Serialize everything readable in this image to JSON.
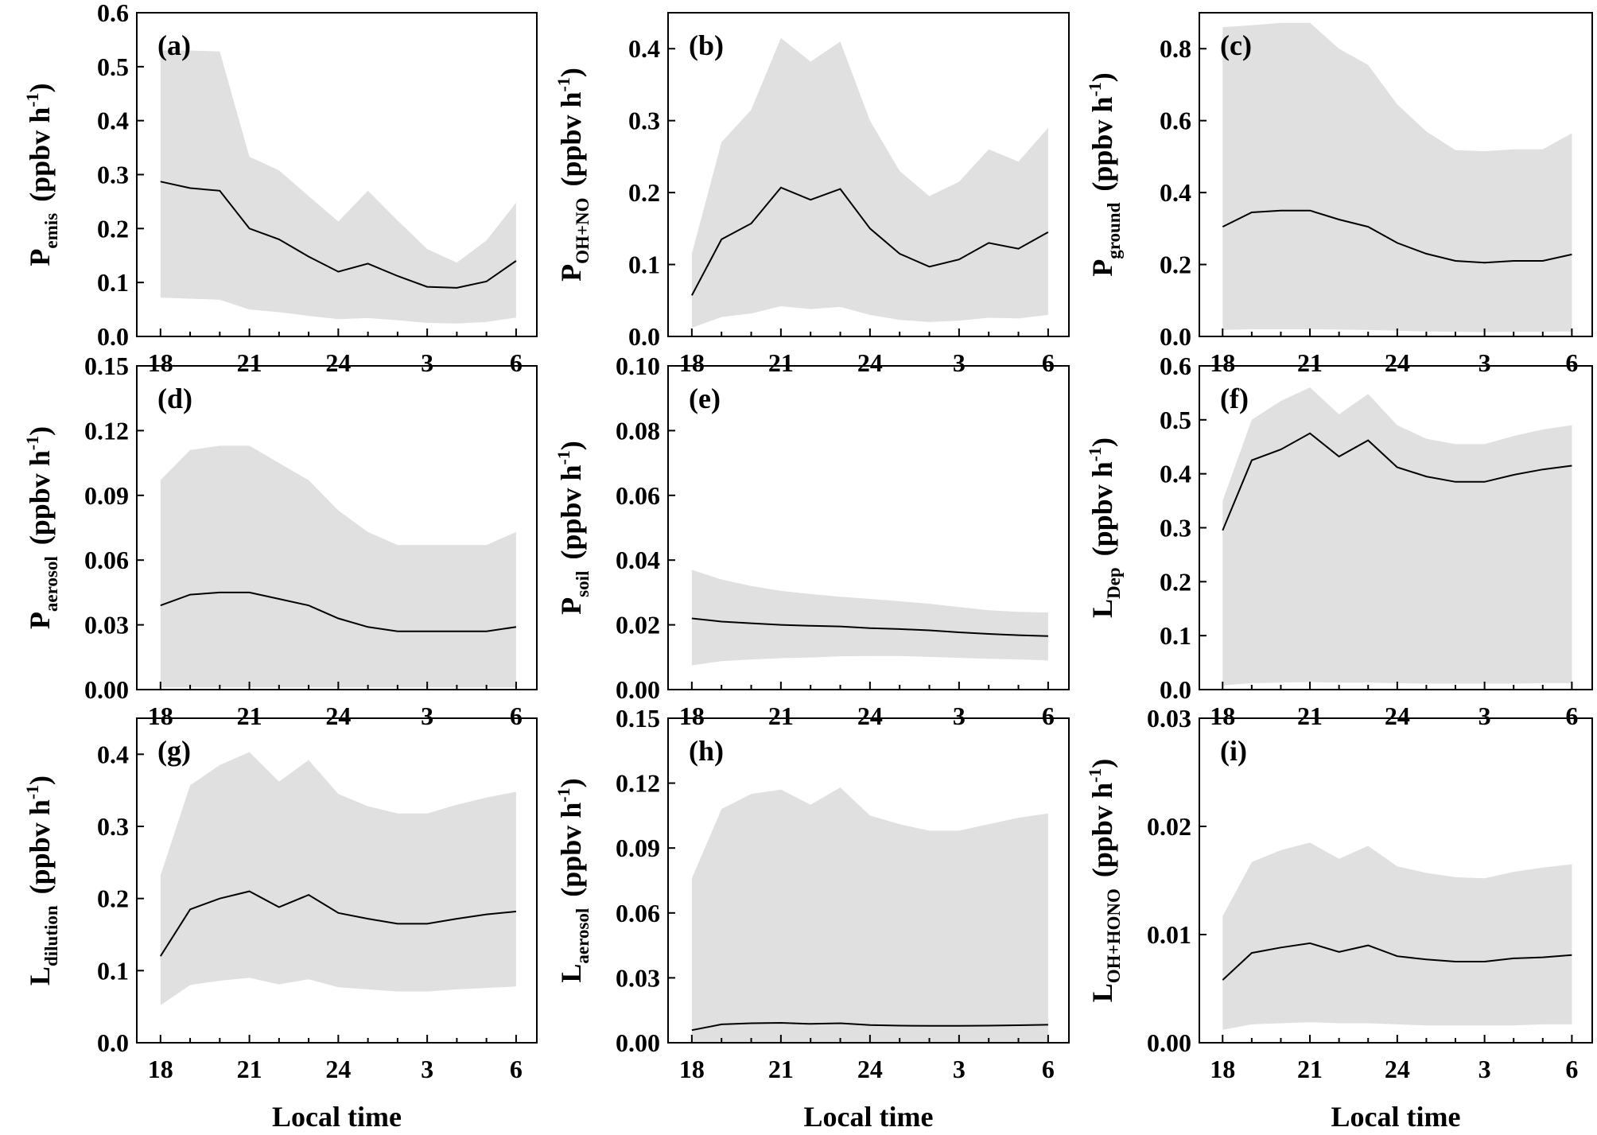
{
  "colors": {
    "band": "#e0e0e0",
    "line": "#000000",
    "axis": "#000000"
  },
  "x_tick_labels": [
    "18",
    "21",
    "24",
    "3",
    "6"
  ],
  "x_axis_label": "Local time",
  "chart_data": [
    {
      "type": "area",
      "tag": "(a)",
      "ylabel_main": "P",
      "ylabel_sub": "emis",
      "ylabel_unit": "(ppbv h",
      "ylabel_sup": "-1",
      "ylabel_close": ")",
      "ylim": [
        0,
        0.6
      ],
      "yticks": [
        0.0,
        0.1,
        0.2,
        0.3,
        0.4,
        0.5,
        0.6
      ],
      "ytick_labels": [
        "0.0",
        "0.1",
        "0.2",
        "0.3",
        "0.4",
        "0.5",
        "0.6"
      ],
      "x": [
        18,
        19,
        20,
        21,
        22,
        23,
        24,
        25,
        26,
        27,
        28,
        29,
        30
      ],
      "mean": [
        0.287,
        0.275,
        0.27,
        0.2,
        0.18,
        0.148,
        0.12,
        0.135,
        0.112,
        0.092,
        0.09,
        0.102,
        0.14
      ],
      "upper": [
        0.53,
        0.53,
        0.528,
        0.333,
        0.308,
        0.26,
        0.213,
        0.27,
        0.215,
        0.162,
        0.137,
        0.178,
        0.248
      ],
      "lower": [
        0.072,
        0.07,
        0.068,
        0.05,
        0.045,
        0.038,
        0.032,
        0.034,
        0.03,
        0.025,
        0.024,
        0.027,
        0.035
      ]
    },
    {
      "type": "area",
      "tag": "(b)",
      "ylabel_main": "P",
      "ylabel_sub": "OH+NO",
      "ylabel_unit": "(ppbv h",
      "ylabel_sup": "-1",
      "ylabel_close": ")",
      "ylim": [
        0,
        0.45
      ],
      "yticks": [
        0.0,
        0.1,
        0.2,
        0.3,
        0.4
      ],
      "ytick_labels": [
        "0.0",
        "0.1",
        "0.2",
        "0.3",
        "0.4"
      ],
      "x": [
        18,
        19,
        20,
        21,
        22,
        23,
        24,
        25,
        26,
        27,
        28,
        29,
        30
      ],
      "mean": [
        0.057,
        0.135,
        0.157,
        0.207,
        0.19,
        0.205,
        0.15,
        0.115,
        0.097,
        0.107,
        0.13,
        0.122,
        0.145
      ],
      "upper": [
        0.115,
        0.27,
        0.315,
        0.415,
        0.382,
        0.41,
        0.3,
        0.23,
        0.195,
        0.215,
        0.26,
        0.243,
        0.29
      ],
      "lower": [
        0.012,
        0.027,
        0.032,
        0.042,
        0.038,
        0.041,
        0.03,
        0.023,
        0.02,
        0.022,
        0.026,
        0.025,
        0.03
      ]
    },
    {
      "type": "area",
      "tag": "(c)",
      "ylabel_main": "P",
      "ylabel_sub": "ground",
      "ylabel_unit": "(ppbv h",
      "ylabel_sup": "-1",
      "ylabel_close": ")",
      "ylim": [
        0,
        0.9
      ],
      "yticks": [
        0.0,
        0.2,
        0.4,
        0.6,
        0.8
      ],
      "ytick_labels": [
        "0.0",
        "0.2",
        "0.4",
        "0.6",
        "0.8"
      ],
      "x": [
        18,
        19,
        20,
        21,
        22,
        23,
        24,
        25,
        26,
        27,
        28,
        29,
        30
      ],
      "mean": [
        0.305,
        0.345,
        0.35,
        0.35,
        0.325,
        0.305,
        0.26,
        0.23,
        0.21,
        0.205,
        0.21,
        0.21,
        0.228
      ],
      "upper": [
        0.86,
        0.865,
        0.872,
        0.872,
        0.8,
        0.755,
        0.645,
        0.57,
        0.518,
        0.515,
        0.52,
        0.52,
        0.565
      ],
      "lower": [
        0.018,
        0.02,
        0.02,
        0.02,
        0.019,
        0.018,
        0.016,
        0.014,
        0.013,
        0.012,
        0.013,
        0.013,
        0.014
      ]
    },
    {
      "type": "area",
      "tag": "(d)",
      "ylabel_main": "P",
      "ylabel_sub": "aerosol",
      "ylabel_unit": "(ppbv h",
      "ylabel_sup": "-1",
      "ylabel_close": ")",
      "ylim": [
        0,
        0.15
      ],
      "yticks": [
        0.0,
        0.03,
        0.06,
        0.09,
        0.12,
        0.15
      ],
      "ytick_labels": [
        "0.00",
        "0.03",
        "0.06",
        "0.09",
        "0.12",
        "0.15"
      ],
      "x": [
        18,
        19,
        20,
        21,
        22,
        23,
        24,
        25,
        26,
        27,
        28,
        29,
        30
      ],
      "mean": [
        0.039,
        0.044,
        0.045,
        0.045,
        0.042,
        0.039,
        0.033,
        0.029,
        0.027,
        0.027,
        0.027,
        0.027,
        0.029
      ],
      "upper": [
        0.097,
        0.111,
        0.113,
        0.113,
        0.105,
        0.097,
        0.083,
        0.073,
        0.067,
        0.067,
        0.067,
        0.067,
        0.073
      ],
      "lower": [
        0.001,
        0.001,
        0.001,
        0.001,
        0.001,
        0.001,
        0.001,
        0.001,
        0.001,
        0.001,
        0.001,
        0.001,
        0.001
      ]
    },
    {
      "type": "area",
      "tag": "(e)",
      "ylabel_main": "P",
      "ylabel_sub": "soil",
      "ylabel_unit": "(ppbv h",
      "ylabel_sup": "-1",
      "ylabel_close": ")",
      "ylim": [
        0,
        0.1
      ],
      "yticks": [
        0.0,
        0.02,
        0.04,
        0.06,
        0.08,
        0.1
      ],
      "ytick_labels": [
        "0.00",
        "0.02",
        "0.04",
        "0.06",
        "0.08",
        "0.10"
      ],
      "x": [
        18,
        19,
        20,
        21,
        22,
        23,
        24,
        25,
        26,
        27,
        28,
        29,
        30
      ],
      "mean": [
        0.022,
        0.021,
        0.0205,
        0.02,
        0.0197,
        0.0195,
        0.019,
        0.0187,
        0.0183,
        0.0177,
        0.0172,
        0.0168,
        0.0165
      ],
      "upper": [
        0.037,
        0.034,
        0.032,
        0.0305,
        0.0295,
        0.0287,
        0.028,
        0.0273,
        0.0265,
        0.0255,
        0.0245,
        0.024,
        0.0238
      ],
      "lower": [
        0.0075,
        0.0088,
        0.0093,
        0.0097,
        0.0099,
        0.0103,
        0.0104,
        0.0104,
        0.0101,
        0.0098,
        0.0095,
        0.0093,
        0.009
      ]
    },
    {
      "type": "area",
      "tag": "(f)",
      "ylabel_main": "L",
      "ylabel_sub": "Dep",
      "ylabel_unit": "(ppbv h",
      "ylabel_sup": "-1",
      "ylabel_close": ")",
      "ylim": [
        0,
        0.6
      ],
      "yticks": [
        0.0,
        0.1,
        0.2,
        0.3,
        0.4,
        0.5,
        0.6
      ],
      "ytick_labels": [
        "0.0",
        "0.1",
        "0.2",
        "0.3",
        "0.4",
        "0.5",
        "0.6"
      ],
      "x": [
        18,
        19,
        20,
        21,
        22,
        23,
        24,
        25,
        26,
        27,
        28,
        29,
        30
      ],
      "mean": [
        0.295,
        0.425,
        0.445,
        0.475,
        0.432,
        0.462,
        0.412,
        0.395,
        0.385,
        0.385,
        0.398,
        0.408,
        0.415
      ],
      "upper": [
        0.35,
        0.5,
        0.535,
        0.56,
        0.51,
        0.548,
        0.49,
        0.465,
        0.455,
        0.455,
        0.47,
        0.482,
        0.49
      ],
      "lower": [
        0.008,
        0.012,
        0.013,
        0.014,
        0.013,
        0.013,
        0.012,
        0.011,
        0.011,
        0.011,
        0.011,
        0.012,
        0.012
      ]
    },
    {
      "type": "area",
      "tag": "(g)",
      "ylabel_main": "L",
      "ylabel_sub": "dilution",
      "ylabel_unit": "(ppbv h",
      "ylabel_sup": "-1",
      "ylabel_close": ")",
      "ylim": [
        0,
        0.45
      ],
      "yticks": [
        0.0,
        0.1,
        0.2,
        0.3,
        0.4
      ],
      "ytick_labels": [
        "0.0",
        "0.1",
        "0.2",
        "0.3",
        "0.4"
      ],
      "x": [
        18,
        19,
        20,
        21,
        22,
        23,
        24,
        25,
        26,
        27,
        28,
        29,
        30
      ],
      "mean": [
        0.12,
        0.185,
        0.2,
        0.21,
        0.188,
        0.205,
        0.18,
        0.172,
        0.165,
        0.165,
        0.172,
        0.178,
        0.182
      ],
      "upper": [
        0.232,
        0.357,
        0.385,
        0.403,
        0.362,
        0.392,
        0.345,
        0.328,
        0.318,
        0.318,
        0.33,
        0.34,
        0.348
      ],
      "lower": [
        0.052,
        0.08,
        0.086,
        0.09,
        0.081,
        0.088,
        0.077,
        0.074,
        0.071,
        0.071,
        0.074,
        0.076,
        0.078
      ]
    },
    {
      "type": "area",
      "tag": "(h)",
      "ylabel_main": "L",
      "ylabel_sub": "aerosol",
      "ylabel_unit": "(ppbv h",
      "ylabel_sup": "-1",
      "ylabel_close": ")",
      "ylim": [
        0,
        0.15
      ],
      "yticks": [
        0.0,
        0.03,
        0.06,
        0.09,
        0.12,
        0.15
      ],
      "ytick_labels": [
        "0.00",
        "0.03",
        "0.06",
        "0.09",
        "0.12",
        "0.15"
      ],
      "x": [
        18,
        19,
        20,
        21,
        22,
        23,
        24,
        25,
        26,
        27,
        28,
        29,
        30
      ],
      "mean": [
        0.0058,
        0.0085,
        0.009,
        0.0092,
        0.0087,
        0.009,
        0.0082,
        0.0079,
        0.0078,
        0.0078,
        0.0079,
        0.0081,
        0.0083
      ],
      "upper": [
        0.076,
        0.108,
        0.115,
        0.117,
        0.11,
        0.118,
        0.105,
        0.101,
        0.098,
        0.098,
        0.101,
        0.104,
        0.106
      ],
      "lower": [
        0.0,
        0.0,
        0.0,
        0.0,
        0.0,
        0.0,
        0.0,
        0.0,
        0.0,
        0.0,
        0.0,
        0.0,
        0.0
      ]
    },
    {
      "type": "area",
      "tag": "(i)",
      "ylabel_main": "L",
      "ylabel_sub": "OH+HONO",
      "ylabel_unit": "(ppbv h",
      "ylabel_sup": "-1",
      "ylabel_close": ")",
      "ylim": [
        0,
        0.03
      ],
      "yticks": [
        0.0,
        0.01,
        0.02,
        0.03
      ],
      "ytick_labels": [
        "0.00",
        "0.01",
        "0.02",
        "0.03"
      ],
      "x": [
        18,
        19,
        20,
        21,
        22,
        23,
        24,
        25,
        26,
        27,
        28,
        29,
        30
      ],
      "mean": [
        0.0058,
        0.0083,
        0.0088,
        0.0092,
        0.0084,
        0.009,
        0.008,
        0.0077,
        0.0075,
        0.0075,
        0.0078,
        0.0079,
        0.0081
      ],
      "upper": [
        0.0117,
        0.0167,
        0.0178,
        0.0185,
        0.017,
        0.0182,
        0.0163,
        0.0157,
        0.0153,
        0.0152,
        0.0158,
        0.0162,
        0.0165
      ],
      "lower": [
        0.0012,
        0.0017,
        0.0018,
        0.0019,
        0.0018,
        0.0018,
        0.0017,
        0.0016,
        0.0016,
        0.0016,
        0.0016,
        0.0017,
        0.0017
      ]
    }
  ]
}
